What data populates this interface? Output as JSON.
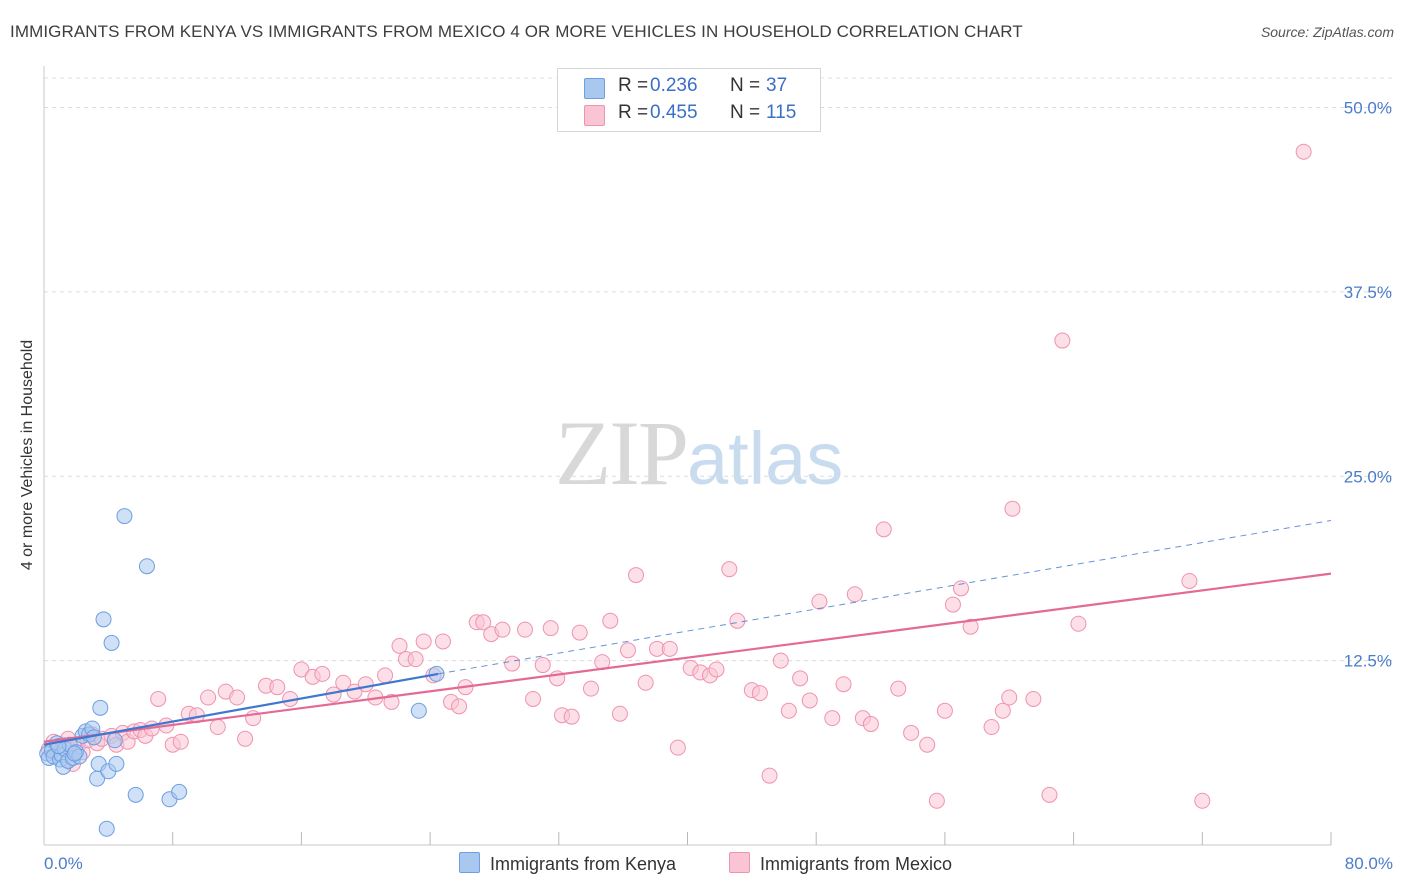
{
  "title": "IMMIGRANTS FROM KENYA VS IMMIGRANTS FROM MEXICO 4 OR MORE VEHICLES IN HOUSEHOLD CORRELATION CHART",
  "source": "Source: ZipAtlas.com",
  "watermark": {
    "zip": "ZIP",
    "atlas": "atlas"
  },
  "legend": {
    "rows": [
      {
        "r_label": "R = ",
        "r_value": "0.236",
        "n_label": "N = ",
        "n_value": "37",
        "color": "#a9c8f0",
        "border": "#6c9ee0"
      },
      {
        "r_label": "R = ",
        "r_value": "0.455",
        "n_label": "N = ",
        "n_value": "115",
        "color": "#f9c4d4",
        "border": "#ee93b0"
      }
    ]
  },
  "bottom_legend": [
    {
      "label": "Immigrants from Kenya",
      "color": "#a9c8f0",
      "border": "#6c9ee0"
    },
    {
      "label": "Immigrants from Mexico",
      "color": "#f9c4d4",
      "border": "#ee93b0"
    }
  ],
  "chart_data": {
    "type": "scatter",
    "title": "IMMIGRANTS FROM KENYA VS IMMIGRANTS FROM MEXICO 4 OR MORE VEHICLES IN HOUSEHOLD CORRELATION CHART",
    "xlabel": "",
    "ylabel": "4 or more Vehicles in Household",
    "xlim": [
      0,
      80
    ],
    "ylim": [
      0,
      52
    ],
    "x_tick_labels": [
      "0.0%",
      "80.0%"
    ],
    "y_ticks": [
      12.5,
      25.0,
      37.5,
      50.0
    ],
    "y_tick_labels": [
      "12.5%",
      "25.0%",
      "37.5%",
      "50.0%"
    ],
    "grid": true,
    "series": [
      {
        "name": "Immigrants from Kenya",
        "color": "#a9c8f0",
        "stroke": "#6c9ee0",
        "trend": {
          "x0": 0,
          "y0": 6.8,
          "x1": 24.5,
          "y1": 11.6,
          "color": "#3f78cf",
          "dashed_to": [
            80,
            22.0
          ]
        },
        "points": [
          [
            0.2,
            6.2
          ],
          [
            0.3,
            5.9
          ],
          [
            0.5,
            6.4
          ],
          [
            0.6,
            6.0
          ],
          [
            0.8,
            6.9
          ],
          [
            1.0,
            5.8
          ],
          [
            1.1,
            6.1
          ],
          [
            1.2,
            5.3
          ],
          [
            1.3,
            6.5
          ],
          [
            1.5,
            5.7
          ],
          [
            1.6,
            6.8
          ],
          [
            1.8,
            5.9
          ],
          [
            2.0,
            6.3
          ],
          [
            2.2,
            6.0
          ],
          [
            2.4,
            7.4
          ],
          [
            2.6,
            7.7
          ],
          [
            2.8,
            7.5
          ],
          [
            3.0,
            7.9
          ],
          [
            3.1,
            7.3
          ],
          [
            3.3,
            4.5
          ],
          [
            3.4,
            5.5
          ],
          [
            3.5,
            9.3
          ],
          [
            3.7,
            15.3
          ],
          [
            3.9,
            1.1
          ],
          [
            4.0,
            5.0
          ],
          [
            4.2,
            13.7
          ],
          [
            4.4,
            7.1
          ],
          [
            4.5,
            5.5
          ],
          [
            5.0,
            22.3
          ],
          [
            5.7,
            3.4
          ],
          [
            6.4,
            18.9
          ],
          [
            7.8,
            3.1
          ],
          [
            8.4,
            3.6
          ],
          [
            23.3,
            9.1
          ],
          [
            24.4,
            11.6
          ],
          [
            0.9,
            6.7
          ],
          [
            1.9,
            6.2
          ]
        ]
      },
      {
        "name": "Immigrants from Mexico",
        "color": "#f9c4d4",
        "stroke": "#ee93b0",
        "trend": {
          "x0": 0,
          "y0": 7.0,
          "x1": 80,
          "y1": 18.4,
          "color": "#e46a96"
        },
        "points": [
          [
            0.3,
            6.5
          ],
          [
            0.6,
            7.0
          ],
          [
            0.9,
            6.2
          ],
          [
            1.2,
            6.8
          ],
          [
            1.5,
            7.2
          ],
          [
            1.8,
            5.5
          ],
          [
            2.1,
            6.7
          ],
          [
            2.4,
            6.3
          ],
          [
            2.7,
            7.1
          ],
          [
            3.0,
            7.5
          ],
          [
            3.3,
            6.9
          ],
          [
            3.6,
            7.2
          ],
          [
            4.2,
            7.4
          ],
          [
            4.5,
            6.8
          ],
          [
            4.9,
            7.6
          ],
          [
            5.2,
            7.0
          ],
          [
            5.6,
            7.7
          ],
          [
            6.0,
            7.8
          ],
          [
            6.3,
            7.4
          ],
          [
            6.7,
            7.9
          ],
          [
            7.1,
            9.9
          ],
          [
            7.6,
            8.1
          ],
          [
            8.0,
            6.8
          ],
          [
            8.5,
            7.0
          ],
          [
            9.0,
            8.9
          ],
          [
            9.5,
            8.8
          ],
          [
            10.2,
            10.0
          ],
          [
            10.8,
            8.0
          ],
          [
            11.3,
            10.4
          ],
          [
            12.0,
            10.0
          ],
          [
            12.5,
            7.2
          ],
          [
            13.0,
            8.6
          ],
          [
            13.8,
            10.8
          ],
          [
            14.5,
            10.7
          ],
          [
            15.3,
            9.9
          ],
          [
            16.0,
            11.9
          ],
          [
            16.7,
            11.4
          ],
          [
            17.3,
            11.6
          ],
          [
            18.0,
            10.2
          ],
          [
            18.6,
            11.0
          ],
          [
            19.3,
            10.4
          ],
          [
            20.0,
            10.9
          ],
          [
            20.6,
            10.0
          ],
          [
            21.2,
            11.5
          ],
          [
            21.6,
            9.7
          ],
          [
            22.1,
            13.5
          ],
          [
            22.5,
            12.6
          ],
          [
            23.1,
            12.6
          ],
          [
            23.6,
            13.8
          ],
          [
            24.2,
            11.5
          ],
          [
            24.8,
            13.8
          ],
          [
            25.3,
            9.7
          ],
          [
            25.8,
            9.4
          ],
          [
            26.2,
            10.7
          ],
          [
            26.9,
            15.1
          ],
          [
            27.3,
            15.1
          ],
          [
            27.8,
            14.3
          ],
          [
            28.5,
            14.6
          ],
          [
            29.1,
            12.3
          ],
          [
            29.9,
            14.6
          ],
          [
            30.4,
            9.9
          ],
          [
            31.0,
            12.2
          ],
          [
            31.5,
            14.7
          ],
          [
            31.9,
            11.3
          ],
          [
            32.2,
            8.8
          ],
          [
            32.8,
            8.7
          ],
          [
            33.3,
            14.4
          ],
          [
            34.0,
            10.6
          ],
          [
            34.7,
            12.4
          ],
          [
            35.2,
            15.2
          ],
          [
            35.8,
            8.9
          ],
          [
            36.3,
            13.2
          ],
          [
            36.8,
            18.3
          ],
          [
            37.4,
            11.0
          ],
          [
            38.1,
            13.3
          ],
          [
            38.9,
            13.3
          ],
          [
            39.4,
            6.6
          ],
          [
            40.2,
            12.0
          ],
          [
            40.8,
            11.7
          ],
          [
            41.4,
            11.5
          ],
          [
            41.8,
            11.9
          ],
          [
            42.6,
            18.7
          ],
          [
            43.1,
            15.2
          ],
          [
            44.0,
            10.5
          ],
          [
            44.5,
            10.3
          ],
          [
            45.1,
            4.7
          ],
          [
            45.8,
            12.5
          ],
          [
            46.3,
            9.1
          ],
          [
            47.0,
            11.3
          ],
          [
            47.6,
            9.8
          ],
          [
            48.2,
            16.5
          ],
          [
            49.0,
            8.6
          ],
          [
            49.7,
            10.9
          ],
          [
            50.4,
            17.0
          ],
          [
            50.9,
            8.6
          ],
          [
            51.4,
            8.2
          ],
          [
            52.2,
            21.4
          ],
          [
            53.1,
            10.6
          ],
          [
            53.9,
            7.6
          ],
          [
            54.9,
            6.8
          ],
          [
            55.5,
            3.0
          ],
          [
            56.0,
            9.1
          ],
          [
            56.5,
            16.3
          ],
          [
            57.0,
            17.4
          ],
          [
            57.6,
            14.8
          ],
          [
            58.9,
            8.0
          ],
          [
            59.6,
            9.1
          ],
          [
            60.2,
            22.8
          ],
          [
            60.0,
            10.0
          ],
          [
            61.5,
            9.9
          ],
          [
            62.5,
            3.4
          ],
          [
            64.3,
            15.0
          ],
          [
            72.0,
            3.0
          ],
          [
            78.3,
            47.0
          ],
          [
            63.3,
            34.2
          ],
          [
            71.2,
            17.9
          ]
        ]
      }
    ]
  }
}
